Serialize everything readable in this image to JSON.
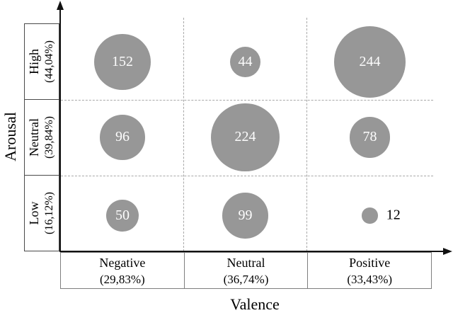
{
  "chart_data": {
    "type": "bubble",
    "title": "",
    "xlabel": "Valence",
    "ylabel": "Arousal",
    "x_categories": [
      {
        "label": "Negative",
        "percent": "(29,83%)"
      },
      {
        "label": "Neutral",
        "percent": "(36,74%)"
      },
      {
        "label": "Positive",
        "percent": "(33,43%)"
      }
    ],
    "y_categories": [
      {
        "label": "High",
        "percent": "(44,04%)"
      },
      {
        "label": "Neutral",
        "percent": "(39,84%)"
      },
      {
        "label": "Low",
        "percent": "(16,12%)"
      }
    ],
    "bubbles": [
      {
        "row": 0,
        "col": 0,
        "valence": "Negative",
        "arousal": "High",
        "value": 152,
        "label_outside": false
      },
      {
        "row": 0,
        "col": 1,
        "valence": "Neutral",
        "arousal": "High",
        "value": 44,
        "label_outside": false
      },
      {
        "row": 0,
        "col": 2,
        "valence": "Positive",
        "arousal": "High",
        "value": 244,
        "label_outside": false
      },
      {
        "row": 1,
        "col": 0,
        "valence": "Negative",
        "arousal": "Neutral",
        "value": 96,
        "label_outside": false
      },
      {
        "row": 1,
        "col": 1,
        "valence": "Neutral",
        "arousal": "Neutral",
        "value": 224,
        "label_outside": false
      },
      {
        "row": 1,
        "col": 2,
        "valence": "Positive",
        "arousal": "Neutral",
        "value": 78,
        "label_outside": false
      },
      {
        "row": 2,
        "col": 0,
        "valence": "Negative",
        "arousal": "Low",
        "value": 50,
        "label_outside": false
      },
      {
        "row": 2,
        "col": 1,
        "valence": "Neutral",
        "arousal": "Low",
        "value": 99,
        "label_outside": false
      },
      {
        "row": 2,
        "col": 2,
        "valence": "Positive",
        "arousal": "Low",
        "value": 12,
        "label_outside": true
      }
    ],
    "radius_scale": 3.24,
    "bubble_color": "#979797",
    "bubble_label_color": "#ffffff",
    "outside_label_color": "#000000",
    "grid": "dashed",
    "grid_color": "#a8a8a8"
  }
}
